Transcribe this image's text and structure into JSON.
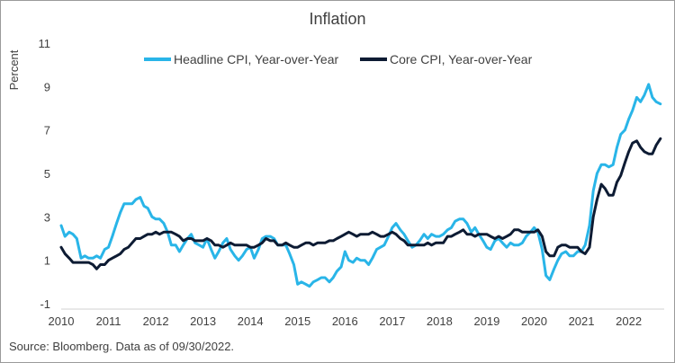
{
  "chart_data": {
    "type": "line",
    "title": "Inflation",
    "ylabel": "Percent",
    "xlabel": "",
    "ylim": [
      -1,
      11
    ],
    "yticks": [
      -1,
      1,
      3,
      5,
      7,
      9,
      11
    ],
    "xlim": [
      2010,
      2022.75
    ],
    "xticks": [
      2010,
      2011,
      2012,
      2013,
      2014,
      2015,
      2016,
      2017,
      2018,
      2019,
      2020,
      2021,
      2022
    ],
    "xtick_labels": [
      "2010",
      "2011",
      "2012",
      "2013",
      "2014",
      "2015",
      "2016",
      "2017",
      "2018",
      "2019",
      "2020",
      "2021",
      "2022"
    ],
    "grid": false,
    "legend_position": "top",
    "source_note": "Source: Bloomberg. Data as of 09/30/2022.",
    "series": [
      {
        "name": "Headline CPI, Year-over-Year",
        "color": "#29b5e8",
        "points": [
          [
            2010.0,
            2.6
          ],
          [
            2010.08,
            2.1
          ],
          [
            2010.17,
            2.3
          ],
          [
            2010.25,
            2.2
          ],
          [
            2010.33,
            2.0
          ],
          [
            2010.42,
            1.1
          ],
          [
            2010.5,
            1.2
          ],
          [
            2010.58,
            1.1
          ],
          [
            2010.67,
            1.1
          ],
          [
            2010.75,
            1.2
          ],
          [
            2010.83,
            1.1
          ],
          [
            2010.92,
            1.5
          ],
          [
            2011.0,
            1.6
          ],
          [
            2011.08,
            2.1
          ],
          [
            2011.17,
            2.7
          ],
          [
            2011.25,
            3.2
          ],
          [
            2011.33,
            3.6
          ],
          [
            2011.42,
            3.6
          ],
          [
            2011.5,
            3.6
          ],
          [
            2011.58,
            3.8
          ],
          [
            2011.67,
            3.9
          ],
          [
            2011.75,
            3.5
          ],
          [
            2011.83,
            3.4
          ],
          [
            2011.92,
            3.0
          ],
          [
            2012.0,
            2.9
          ],
          [
            2012.08,
            2.9
          ],
          [
            2012.17,
            2.7
          ],
          [
            2012.25,
            2.3
          ],
          [
            2012.33,
            1.7
          ],
          [
            2012.42,
            1.7
          ],
          [
            2012.5,
            1.4
          ],
          [
            2012.58,
            1.7
          ],
          [
            2012.67,
            2.0
          ],
          [
            2012.75,
            2.2
          ],
          [
            2012.83,
            1.8
          ],
          [
            2012.92,
            1.7
          ],
          [
            2013.0,
            1.6
          ],
          [
            2013.08,
            2.0
          ],
          [
            2013.17,
            1.5
          ],
          [
            2013.25,
            1.1
          ],
          [
            2013.33,
            1.4
          ],
          [
            2013.42,
            1.8
          ],
          [
            2013.5,
            2.0
          ],
          [
            2013.58,
            1.5
          ],
          [
            2013.67,
            1.2
          ],
          [
            2013.75,
            1.0
          ],
          [
            2013.83,
            1.2
          ],
          [
            2013.92,
            1.5
          ],
          [
            2014.0,
            1.6
          ],
          [
            2014.08,
            1.1
          ],
          [
            2014.17,
            1.5
          ],
          [
            2014.25,
            2.0
          ],
          [
            2014.33,
            2.1
          ],
          [
            2014.42,
            2.1
          ],
          [
            2014.5,
            2.0
          ],
          [
            2014.58,
            1.7
          ],
          [
            2014.67,
            1.7
          ],
          [
            2014.75,
            1.7
          ],
          [
            2014.83,
            1.3
          ],
          [
            2014.92,
            0.8
          ],
          [
            2015.0,
            -0.1
          ],
          [
            2015.08,
            0.0
          ],
          [
            2015.17,
            -0.1
          ],
          [
            2015.25,
            -0.2
          ],
          [
            2015.33,
            0.0
          ],
          [
            2015.42,
            0.1
          ],
          [
            2015.5,
            0.2
          ],
          [
            2015.58,
            0.2
          ],
          [
            2015.67,
            0.0
          ],
          [
            2015.75,
            0.2
          ],
          [
            2015.83,
            0.5
          ],
          [
            2015.92,
            0.7
          ],
          [
            2016.0,
            1.4
          ],
          [
            2016.08,
            1.0
          ],
          [
            2016.17,
            0.9
          ],
          [
            2016.25,
            1.1
          ],
          [
            2016.33,
            1.0
          ],
          [
            2016.42,
            1.0
          ],
          [
            2016.5,
            0.8
          ],
          [
            2016.58,
            1.1
          ],
          [
            2016.67,
            1.5
          ],
          [
            2016.75,
            1.6
          ],
          [
            2016.83,
            1.7
          ],
          [
            2016.92,
            2.1
          ],
          [
            2017.0,
            2.5
          ],
          [
            2017.08,
            2.7
          ],
          [
            2017.17,
            2.4
          ],
          [
            2017.25,
            2.2
          ],
          [
            2017.33,
            1.9
          ],
          [
            2017.42,
            1.6
          ],
          [
            2017.5,
            1.7
          ],
          [
            2017.58,
            1.9
          ],
          [
            2017.67,
            2.2
          ],
          [
            2017.75,
            2.0
          ],
          [
            2017.83,
            2.2
          ],
          [
            2017.92,
            2.1
          ],
          [
            2018.0,
            2.1
          ],
          [
            2018.08,
            2.2
          ],
          [
            2018.17,
            2.4
          ],
          [
            2018.25,
            2.5
          ],
          [
            2018.33,
            2.8
          ],
          [
            2018.42,
            2.9
          ],
          [
            2018.5,
            2.9
          ],
          [
            2018.58,
            2.7
          ],
          [
            2018.67,
            2.3
          ],
          [
            2018.75,
            2.5
          ],
          [
            2018.83,
            2.2
          ],
          [
            2018.92,
            1.9
          ],
          [
            2019.0,
            1.6
          ],
          [
            2019.08,
            1.5
          ],
          [
            2019.17,
            1.9
          ],
          [
            2019.25,
            2.0
          ],
          [
            2019.33,
            1.8
          ],
          [
            2019.42,
            1.6
          ],
          [
            2019.5,
            1.8
          ],
          [
            2019.58,
            1.7
          ],
          [
            2019.67,
            1.7
          ],
          [
            2019.75,
            1.8
          ],
          [
            2019.83,
            2.1
          ],
          [
            2019.92,
            2.3
          ],
          [
            2020.0,
            2.5
          ],
          [
            2020.08,
            2.3
          ],
          [
            2020.17,
            1.5
          ],
          [
            2020.25,
            0.3
          ],
          [
            2020.33,
            0.1
          ],
          [
            2020.42,
            0.6
          ],
          [
            2020.5,
            1.0
          ],
          [
            2020.58,
            1.3
          ],
          [
            2020.67,
            1.4
          ],
          [
            2020.75,
            1.2
          ],
          [
            2020.83,
            1.2
          ],
          [
            2020.92,
            1.4
          ],
          [
            2021.0,
            1.4
          ],
          [
            2021.08,
            1.7
          ],
          [
            2021.17,
            2.6
          ],
          [
            2021.25,
            4.2
          ],
          [
            2021.33,
            5.0
          ],
          [
            2021.42,
            5.4
          ],
          [
            2021.5,
            5.4
          ],
          [
            2021.58,
            5.3
          ],
          [
            2021.67,
            5.4
          ],
          [
            2021.75,
            6.2
          ],
          [
            2021.83,
            6.8
          ],
          [
            2021.92,
            7.0
          ],
          [
            2022.0,
            7.5
          ],
          [
            2022.08,
            7.9
          ],
          [
            2022.17,
            8.5
          ],
          [
            2022.25,
            8.3
          ],
          [
            2022.33,
            8.6
          ],
          [
            2022.42,
            9.1
          ],
          [
            2022.5,
            8.5
          ],
          [
            2022.58,
            8.3
          ],
          [
            2022.67,
            8.2
          ]
        ]
      },
      {
        "name": "Core CPI, Year-over-Year",
        "color": "#0d1b33",
        "points": [
          [
            2010.0,
            1.6
          ],
          [
            2010.08,
            1.3
          ],
          [
            2010.17,
            1.1
          ],
          [
            2010.25,
            0.9
          ],
          [
            2010.33,
            0.9
          ],
          [
            2010.42,
            0.9
          ],
          [
            2010.5,
            0.9
          ],
          [
            2010.58,
            0.9
          ],
          [
            2010.67,
            0.8
          ],
          [
            2010.75,
            0.6
          ],
          [
            2010.83,
            0.8
          ],
          [
            2010.92,
            0.8
          ],
          [
            2011.0,
            1.0
          ],
          [
            2011.08,
            1.1
          ],
          [
            2011.17,
            1.2
          ],
          [
            2011.25,
            1.3
          ],
          [
            2011.33,
            1.5
          ],
          [
            2011.42,
            1.6
          ],
          [
            2011.5,
            1.8
          ],
          [
            2011.58,
            2.0
          ],
          [
            2011.67,
            2.0
          ],
          [
            2011.75,
            2.1
          ],
          [
            2011.83,
            2.2
          ],
          [
            2011.92,
            2.2
          ],
          [
            2012.0,
            2.3
          ],
          [
            2012.08,
            2.2
          ],
          [
            2012.17,
            2.3
          ],
          [
            2012.25,
            2.3
          ],
          [
            2012.33,
            2.3
          ],
          [
            2012.42,
            2.2
          ],
          [
            2012.5,
            2.1
          ],
          [
            2012.58,
            1.9
          ],
          [
            2012.67,
            2.0
          ],
          [
            2012.75,
            2.0
          ],
          [
            2012.83,
            1.9
          ],
          [
            2012.92,
            1.9
          ],
          [
            2013.0,
            1.9
          ],
          [
            2013.08,
            2.0
          ],
          [
            2013.17,
            1.9
          ],
          [
            2013.25,
            1.7
          ],
          [
            2013.33,
            1.7
          ],
          [
            2013.42,
            1.6
          ],
          [
            2013.5,
            1.7
          ],
          [
            2013.58,
            1.8
          ],
          [
            2013.67,
            1.7
          ],
          [
            2013.75,
            1.7
          ],
          [
            2013.83,
            1.7
          ],
          [
            2013.92,
            1.7
          ],
          [
            2014.0,
            1.6
          ],
          [
            2014.08,
            1.6
          ],
          [
            2014.17,
            1.7
          ],
          [
            2014.25,
            1.8
          ],
          [
            2014.33,
            2.0
          ],
          [
            2014.42,
            1.9
          ],
          [
            2014.5,
            1.9
          ],
          [
            2014.58,
            1.7
          ],
          [
            2014.67,
            1.7
          ],
          [
            2014.75,
            1.8
          ],
          [
            2014.83,
            1.7
          ],
          [
            2014.92,
            1.6
          ],
          [
            2015.0,
            1.6
          ],
          [
            2015.08,
            1.7
          ],
          [
            2015.17,
            1.8
          ],
          [
            2015.25,
            1.8
          ],
          [
            2015.33,
            1.7
          ],
          [
            2015.42,
            1.8
          ],
          [
            2015.5,
            1.8
          ],
          [
            2015.58,
            1.8
          ],
          [
            2015.67,
            1.9
          ],
          [
            2015.75,
            1.9
          ],
          [
            2015.83,
            2.0
          ],
          [
            2015.92,
            2.1
          ],
          [
            2016.0,
            2.2
          ],
          [
            2016.08,
            2.3
          ],
          [
            2016.17,
            2.2
          ],
          [
            2016.25,
            2.1
          ],
          [
            2016.33,
            2.2
          ],
          [
            2016.42,
            2.2
          ],
          [
            2016.5,
            2.2
          ],
          [
            2016.58,
            2.3
          ],
          [
            2016.67,
            2.2
          ],
          [
            2016.75,
            2.1
          ],
          [
            2016.83,
            2.1
          ],
          [
            2016.92,
            2.2
          ],
          [
            2017.0,
            2.3
          ],
          [
            2017.08,
            2.2
          ],
          [
            2017.17,
            2.0
          ],
          [
            2017.25,
            1.9
          ],
          [
            2017.33,
            1.7
          ],
          [
            2017.42,
            1.7
          ],
          [
            2017.5,
            1.7
          ],
          [
            2017.58,
            1.7
          ],
          [
            2017.67,
            1.7
          ],
          [
            2017.75,
            1.8
          ],
          [
            2017.83,
            1.7
          ],
          [
            2017.92,
            1.8
          ],
          [
            2018.0,
            1.8
          ],
          [
            2018.08,
            1.8
          ],
          [
            2018.17,
            2.1
          ],
          [
            2018.25,
            2.1
          ],
          [
            2018.33,
            2.2
          ],
          [
            2018.42,
            2.3
          ],
          [
            2018.5,
            2.4
          ],
          [
            2018.58,
            2.2
          ],
          [
            2018.67,
            2.2
          ],
          [
            2018.75,
            2.1
          ],
          [
            2018.83,
            2.2
          ],
          [
            2018.92,
            2.2
          ],
          [
            2019.0,
            2.2
          ],
          [
            2019.08,
            2.1
          ],
          [
            2019.17,
            2.0
          ],
          [
            2019.25,
            2.1
          ],
          [
            2019.33,
            2.0
          ],
          [
            2019.42,
            2.1
          ],
          [
            2019.5,
            2.2
          ],
          [
            2019.58,
            2.4
          ],
          [
            2019.67,
            2.4
          ],
          [
            2019.75,
            2.3
          ],
          [
            2019.83,
            2.3
          ],
          [
            2019.92,
            2.3
          ],
          [
            2020.0,
            2.3
          ],
          [
            2020.08,
            2.4
          ],
          [
            2020.17,
            2.1
          ],
          [
            2020.25,
            1.4
          ],
          [
            2020.33,
            1.2
          ],
          [
            2020.42,
            1.2
          ],
          [
            2020.5,
            1.6
          ],
          [
            2020.58,
            1.7
          ],
          [
            2020.67,
            1.7
          ],
          [
            2020.75,
            1.6
          ],
          [
            2020.83,
            1.6
          ],
          [
            2020.92,
            1.6
          ],
          [
            2021.0,
            1.4
          ],
          [
            2021.08,
            1.3
          ],
          [
            2021.17,
            1.6
          ],
          [
            2021.25,
            3.0
          ],
          [
            2021.33,
            3.8
          ],
          [
            2021.42,
            4.5
          ],
          [
            2021.5,
            4.3
          ],
          [
            2021.58,
            4.0
          ],
          [
            2021.67,
            4.0
          ],
          [
            2021.75,
            4.6
          ],
          [
            2021.83,
            4.9
          ],
          [
            2021.92,
            5.5
          ],
          [
            2022.0,
            6.0
          ],
          [
            2022.08,
            6.4
          ],
          [
            2022.17,
            6.5
          ],
          [
            2022.25,
            6.2
          ],
          [
            2022.33,
            6.0
          ],
          [
            2022.42,
            5.9
          ],
          [
            2022.5,
            5.9
          ],
          [
            2022.58,
            6.3
          ],
          [
            2022.67,
            6.6
          ]
        ]
      }
    ]
  }
}
